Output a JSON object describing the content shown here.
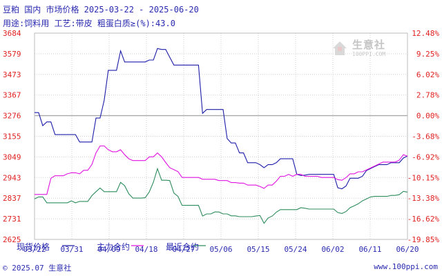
{
  "header": {
    "line1": "豆粕 国内 市场价格 2025-03-22 - 2025-06-20",
    "line2": "用途:饲料用 工艺:带皮 粗蛋白质≥(%):43.0"
  },
  "watermark": {
    "name": "生意社",
    "url": "100PPI.COM"
  },
  "footer": {
    "left": "© 2025.07 生意社",
    "right": "www.100ppi.com"
  },
  "colors": {
    "spot": "#1c1ca8",
    "main_contract": "#e012e0",
    "recent_contract": "#2c8c5c",
    "text": "#2a2ab0",
    "baseline": "#aaaaaa"
  },
  "chart_data": {
    "type": "line",
    "title": "豆粕 国内 市场价格 2025-03-22 - 2025-06-20",
    "categories": [
      "03/22",
      "03/31",
      "04/09",
      "04/18",
      "04/27",
      "05/06",
      "05/15",
      "05/24",
      "06/02",
      "06/11",
      "06/20"
    ],
    "y_ticks": [
      "3684",
      "3579",
      "3473",
      "3367",
      "3276",
      "3155",
      "3049",
      "2943",
      "2837",
      "2731",
      "2625"
    ],
    "y2_ticks": [
      "12.48%",
      "9.25%",
      "6.02%",
      "2.78%",
      "0.00%",
      "-3.68%",
      "-6.92%",
      "-10.15%",
      "-13.38%",
      "-16.62%",
      "-19.85%"
    ],
    "ylim": [
      2625,
      3684
    ],
    "y2lim": [
      -19.85,
      12.48
    ],
    "grid": true,
    "legend_position": "bottom-left",
    "series": [
      {
        "name": "现货价格",
        "values": [
          [
            0,
            3276
          ],
          [
            1,
            3276
          ],
          [
            2,
            3209
          ],
          [
            3,
            3228
          ],
          [
            4,
            3228
          ],
          [
            5,
            3163
          ],
          [
            6,
            3163
          ],
          [
            7,
            3163
          ],
          [
            8,
            3163
          ],
          [
            9,
            3163
          ],
          [
            10,
            3163
          ],
          [
            11,
            3125
          ],
          [
            12,
            3125
          ],
          [
            13,
            3125
          ],
          [
            14,
            3125
          ],
          [
            15,
            3248
          ],
          [
            16,
            3248
          ],
          [
            17,
            3340
          ],
          [
            18,
            3493
          ],
          [
            19,
            3493
          ],
          [
            20,
            3493
          ],
          [
            21,
            3593
          ],
          [
            22,
            3536
          ],
          [
            23,
            3536
          ],
          [
            24,
            3536
          ],
          [
            25,
            3536
          ],
          [
            26,
            3536
          ],
          [
            27,
            3536
          ],
          [
            28,
            3546
          ],
          [
            29,
            3546
          ],
          [
            30,
            3605
          ],
          [
            31,
            3600
          ],
          [
            32,
            3600
          ],
          [
            33,
            3560
          ],
          [
            34,
            3520
          ],
          [
            35,
            3520
          ],
          [
            36,
            3520
          ],
          [
            37,
            3520
          ],
          [
            38,
            3520
          ],
          [
            39,
            3520
          ],
          [
            40,
            3520
          ],
          [
            41,
            3272
          ],
          [
            42,
            3292
          ],
          [
            43,
            3292
          ],
          [
            44,
            3292
          ],
          [
            45,
            3292
          ],
          [
            46,
            3292
          ],
          [
            47,
            3143
          ],
          [
            48,
            3120
          ],
          [
            49,
            3120
          ],
          [
            50,
            3069
          ],
          [
            51,
            3069
          ],
          [
            52,
            3019
          ],
          [
            53,
            3019
          ],
          [
            54,
            3019
          ],
          [
            55,
            3009
          ],
          [
            56,
            2993
          ],
          [
            57,
            3009
          ],
          [
            58,
            3009
          ],
          [
            59,
            3019
          ],
          [
            60,
            3039
          ],
          [
            61,
            3039
          ],
          [
            62,
            3039
          ],
          [
            63,
            3039
          ],
          [
            64,
            2959
          ],
          [
            65,
            2953
          ],
          [
            66,
            2955
          ],
          [
            67,
            2959
          ],
          [
            68,
            2959
          ],
          [
            69,
            2959
          ],
          [
            70,
            2959
          ],
          [
            71,
            2959
          ],
          [
            72,
            2959
          ],
          [
            73,
            2959
          ],
          [
            74,
            2890
          ],
          [
            75,
            2885
          ],
          [
            76,
            2899
          ],
          [
            77,
            2939
          ],
          [
            78,
            2939
          ],
          [
            79,
            2939
          ],
          [
            80,
            2949
          ],
          [
            81,
            2979
          ],
          [
            82,
            2989
          ],
          [
            83,
            2999
          ],
          [
            84,
            3009
          ],
          [
            85,
            3009
          ],
          [
            86,
            3009
          ],
          [
            87,
            3019
          ],
          [
            88,
            3019
          ],
          [
            89,
            3019
          ],
          [
            90,
            3043
          ],
          [
            91,
            3053
          ]
        ]
      },
      {
        "name": "主力合约",
        "values": [
          [
            0,
            2856
          ],
          [
            1,
            2856
          ],
          [
            2,
            2856
          ],
          [
            3,
            2856
          ],
          [
            4,
            2939
          ],
          [
            5,
            2952
          ],
          [
            6,
            2952
          ],
          [
            7,
            2952
          ],
          [
            8,
            2962
          ],
          [
            9,
            2967
          ],
          [
            10,
            2967
          ],
          [
            11,
            2962
          ],
          [
            12,
            2980
          ],
          [
            13,
            2980
          ],
          [
            14,
            3010
          ],
          [
            15,
            3069
          ],
          [
            16,
            3105
          ],
          [
            17,
            3105
          ],
          [
            18,
            3085
          ],
          [
            19,
            3075
          ],
          [
            20,
            3075
          ],
          [
            21,
            3085
          ],
          [
            22,
            3060
          ],
          [
            23,
            3039
          ],
          [
            24,
            3030
          ],
          [
            25,
            3030
          ],
          [
            26,
            3030
          ],
          [
            27,
            3030
          ],
          [
            28,
            3049
          ],
          [
            29,
            3049
          ],
          [
            30,
            3069
          ],
          [
            31,
            3049
          ],
          [
            32,
            3020
          ],
          [
            33,
            2993
          ],
          [
            34,
            2983
          ],
          [
            35,
            2973
          ],
          [
            36,
            2943
          ],
          [
            37,
            2943
          ],
          [
            38,
            2943
          ],
          [
            39,
            2943
          ],
          [
            40,
            2943
          ],
          [
            41,
            2934
          ],
          [
            42,
            2934
          ],
          [
            43,
            2934
          ],
          [
            44,
            2934
          ],
          [
            45,
            2927
          ],
          [
            46,
            2927
          ],
          [
            47,
            2927
          ],
          [
            48,
            2917
          ],
          [
            49,
            2917
          ],
          [
            50,
            2914
          ],
          [
            51,
            2914
          ],
          [
            52,
            2904
          ],
          [
            53,
            2904
          ],
          [
            54,
            2904
          ],
          [
            55,
            2897
          ],
          [
            56,
            2887
          ],
          [
            57,
            2904
          ],
          [
            58,
            2904
          ],
          [
            59,
            2924
          ],
          [
            60,
            2949
          ],
          [
            61,
            2949
          ],
          [
            62,
            2959
          ],
          [
            63,
            2949
          ],
          [
            64,
            2959
          ],
          [
            65,
            2959
          ],
          [
            66,
            2949
          ],
          [
            67,
            2949
          ],
          [
            68,
            2949
          ],
          [
            69,
            2949
          ],
          [
            70,
            2943
          ],
          [
            71,
            2943
          ],
          [
            72,
            2943
          ],
          [
            73,
            2943
          ],
          [
            74,
            2932
          ],
          [
            75,
            2929
          ],
          [
            76,
            2942
          ],
          [
            77,
            2962
          ],
          [
            78,
            2962
          ],
          [
            79,
            2972
          ],
          [
            80,
            2972
          ],
          [
            81,
            2982
          ],
          [
            82,
            2992
          ],
          [
            83,
            3002
          ],
          [
            84,
            3012
          ],
          [
            85,
            3022
          ],
          [
            86,
            3022
          ],
          [
            87,
            3022
          ],
          [
            88,
            3022
          ],
          [
            89,
            3032
          ],
          [
            90,
            3060
          ],
          [
            91,
            3052
          ]
        ]
      },
      {
        "name": "最近合约",
        "values": [
          [
            0,
            2833
          ],
          [
            1,
            2843
          ],
          [
            2,
            2843
          ],
          [
            3,
            2813
          ],
          [
            4,
            2813
          ],
          [
            5,
            2813
          ],
          [
            6,
            2813
          ],
          [
            7,
            2813
          ],
          [
            8,
            2813
          ],
          [
            9,
            2823
          ],
          [
            10,
            2813
          ],
          [
            11,
            2820
          ],
          [
            12,
            2820
          ],
          [
            13,
            2820
          ],
          [
            14,
            2850
          ],
          [
            15,
            2870
          ],
          [
            16,
            2889
          ],
          [
            17,
            2870
          ],
          [
            18,
            2870
          ],
          [
            19,
            2870
          ],
          [
            20,
            2870
          ],
          [
            21,
            2918
          ],
          [
            22,
            2901
          ],
          [
            23,
            2859
          ],
          [
            24,
            2837
          ],
          [
            25,
            2837
          ],
          [
            26,
            2837
          ],
          [
            27,
            2839
          ],
          [
            28,
            2869
          ],
          [
            29,
            2919
          ],
          [
            30,
            2988
          ],
          [
            31,
            2929
          ],
          [
            32,
            2929
          ],
          [
            33,
            2927
          ],
          [
            34,
            2863
          ],
          [
            35,
            2846
          ],
          [
            36,
            2800
          ],
          [
            37,
            2800
          ],
          [
            38,
            2800
          ],
          [
            39,
            2800
          ],
          [
            40,
            2800
          ],
          [
            41,
            2745
          ],
          [
            42,
            2756
          ],
          [
            43,
            2756
          ],
          [
            44,
            2766
          ],
          [
            45,
            2766
          ],
          [
            46,
            2756
          ],
          [
            47,
            2756
          ],
          [
            48,
            2746
          ],
          [
            49,
            2746
          ],
          [
            50,
            2742
          ],
          [
            51,
            2742
          ],
          [
            52,
            2742
          ],
          [
            53,
            2742
          ],
          [
            54,
            2745
          ],
          [
            55,
            2748
          ],
          [
            56,
            2708
          ],
          [
            57,
            2735
          ],
          [
            58,
            2745
          ],
          [
            59,
            2765
          ],
          [
            60,
            2778
          ],
          [
            61,
            2778
          ],
          [
            62,
            2778
          ],
          [
            63,
            2778
          ],
          [
            64,
            2778
          ],
          [
            65,
            2788
          ],
          [
            66,
            2785
          ],
          [
            67,
            2781
          ],
          [
            68,
            2781
          ],
          [
            69,
            2781
          ],
          [
            70,
            2781
          ],
          [
            71,
            2781
          ],
          [
            72,
            2781
          ],
          [
            73,
            2781
          ],
          [
            74,
            2763
          ],
          [
            75,
            2758
          ],
          [
            76,
            2768
          ],
          [
            77,
            2788
          ],
          [
            78,
            2798
          ],
          [
            79,
            2808
          ],
          [
            80,
            2823
          ],
          [
            81,
            2833
          ],
          [
            82,
            2843
          ],
          [
            83,
            2846
          ],
          [
            84,
            2846
          ],
          [
            85,
            2846
          ],
          [
            86,
            2846
          ],
          [
            87,
            2851
          ],
          [
            88,
            2851
          ],
          [
            89,
            2855
          ],
          [
            90,
            2872
          ],
          [
            91,
            2868
          ]
        ]
      }
    ]
  }
}
